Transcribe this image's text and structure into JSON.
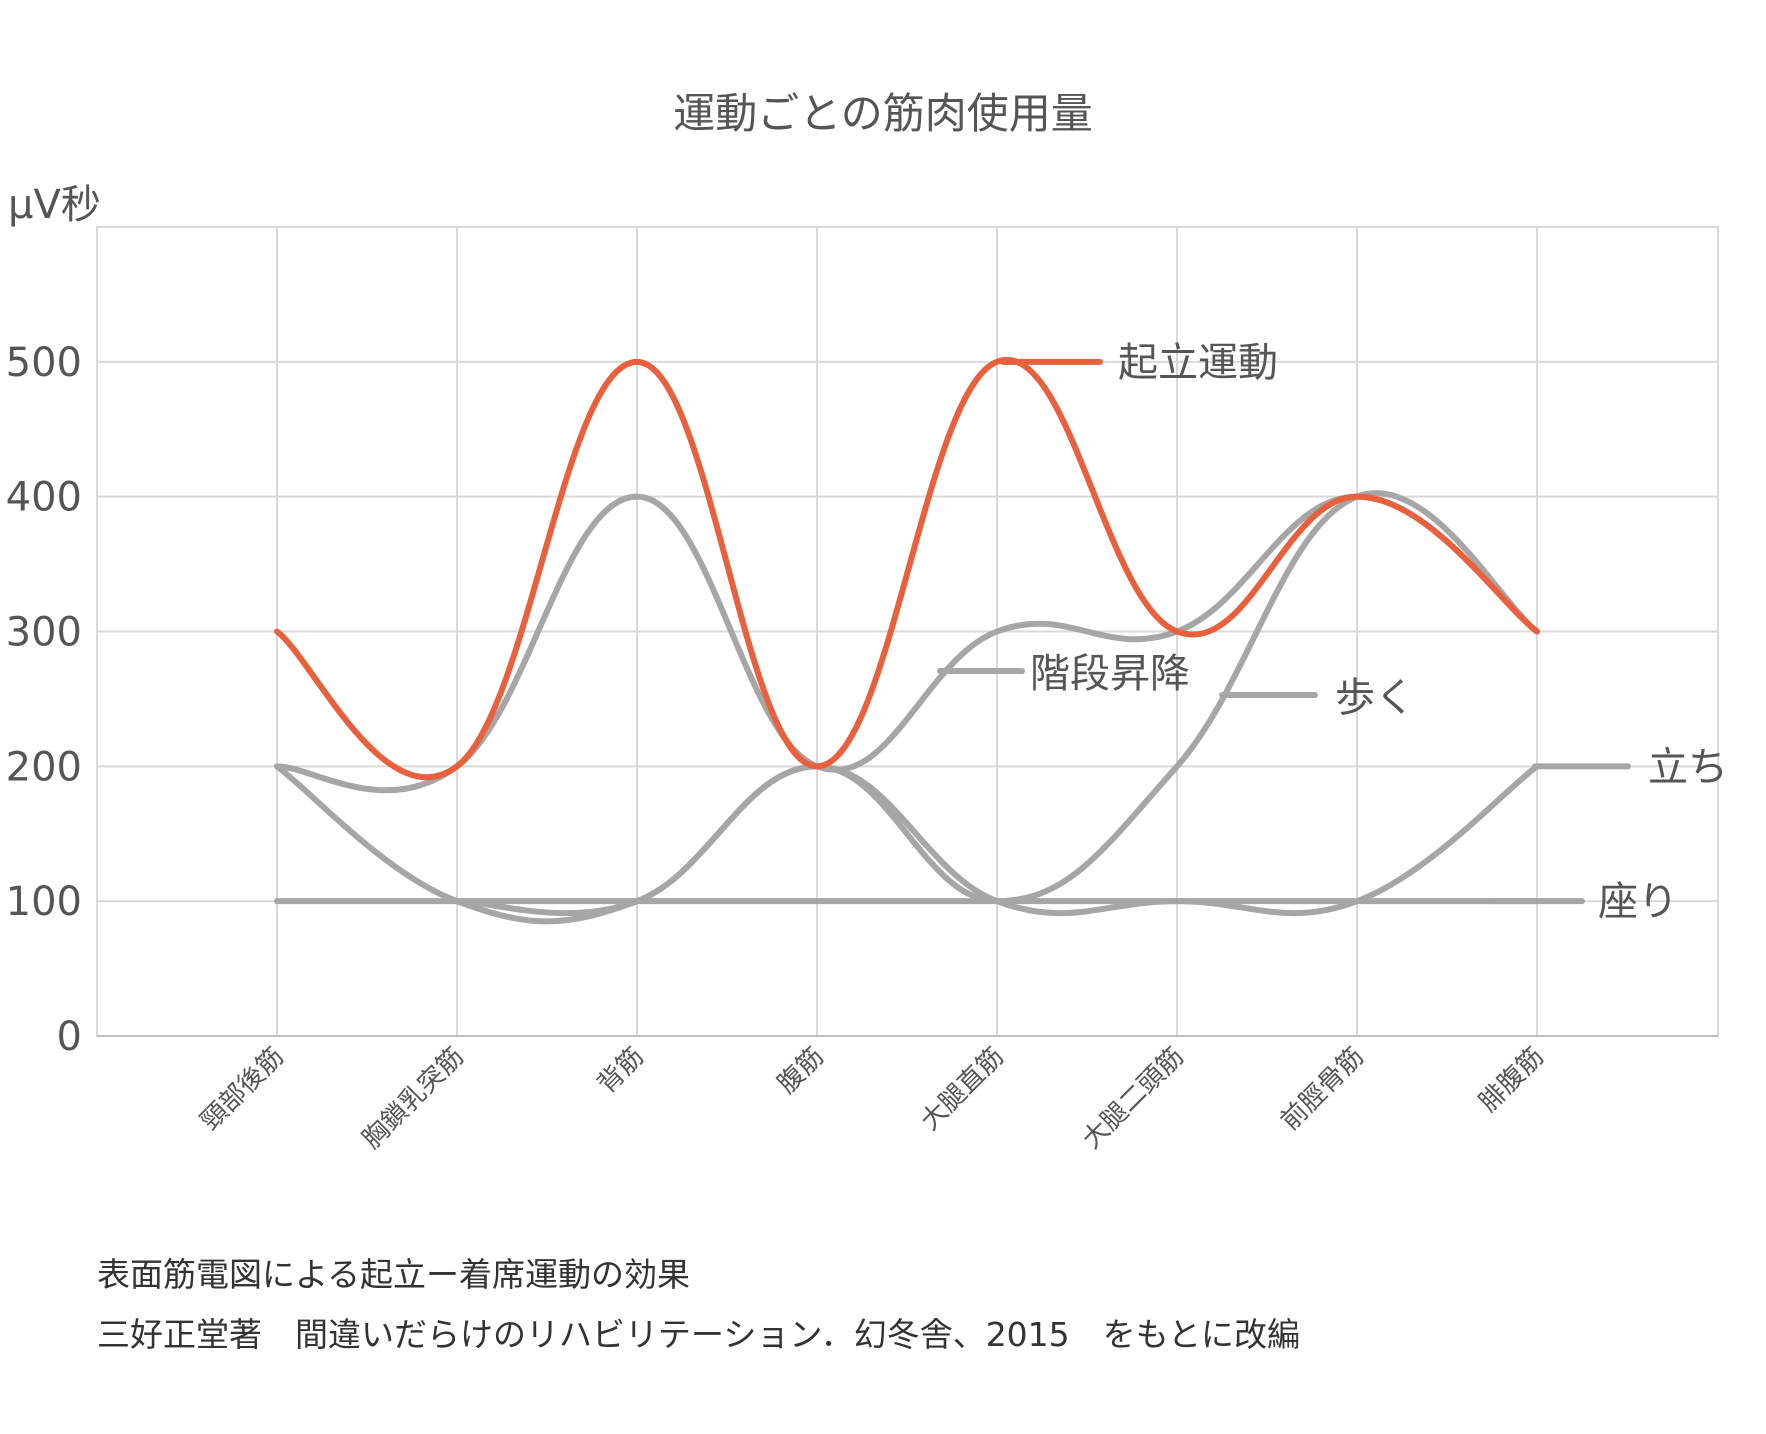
{
  "chart_data": {
    "type": "line",
    "title": "運動ごとの筋肉使用量",
    "ylabel": "μV秒",
    "ylim": [
      0,
      600
    ],
    "yticks": [
      0,
      100,
      200,
      300,
      400,
      500
    ],
    "grid": true,
    "categories": [
      "頸部後筋",
      "胸鎖乳突筋",
      "背筋",
      "腹筋",
      "大腿直筋",
      "大腿二頭筋",
      "前脛骨筋",
      "腓腹筋"
    ],
    "series": [
      {
        "name": "起立運動",
        "color": "#E8603C",
        "values": [
          300,
          200,
          500,
          200,
          500,
          300,
          400,
          300
        ]
      },
      {
        "name": "階段昇降",
        "color": "#A6A6A6",
        "values": [
          200,
          200,
          400,
          200,
          300,
          300,
          400,
          300
        ]
      },
      {
        "name": "歩く",
        "color": "#A6A6A6",
        "values": [
          200,
          100,
          100,
          200,
          100,
          200,
          400,
          300
        ]
      },
      {
        "name": "立ち",
        "color": "#A6A6A6",
        "values": [
          null,
          100,
          100,
          200,
          100,
          100,
          100,
          200
        ]
      },
      {
        "name": "座り",
        "color": "#A6A6A6",
        "values": [
          100,
          100,
          100,
          100,
          100,
          100,
          100,
          100
        ]
      }
    ]
  },
  "caption": {
    "line1": "表面筋電図による起立ー着席運動の効果",
    "line2": "三好正堂著　間違いだらけのリハビリテーション．幻冬舎、2015　をもとに改編"
  }
}
